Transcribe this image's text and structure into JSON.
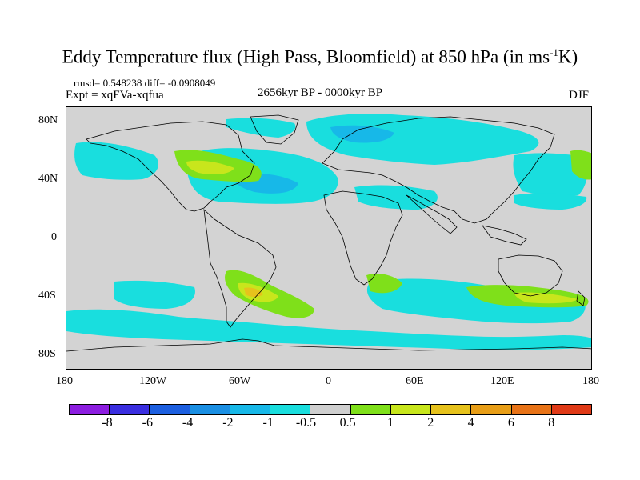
{
  "title": {
    "main": "Eddy Temperature flux (High Pass, Bloomfield) at 850 hPa (in ms",
    "superscript": "-1",
    "tail": "K)"
  },
  "stats_line": "rmsd= 0.548238 diff= -0.0908049",
  "expt_line": "Expt = xqFVa-xqfua",
  "period": "2656kyr BP - 0000kyr BP",
  "season": "DJF",
  "map": {
    "lat_labels": [
      "80N",
      "40N",
      "0",
      "40S",
      "80S"
    ],
    "lon_labels": [
      "180",
      "120W",
      "60W",
      "0",
      "60E",
      "120E",
      "180"
    ],
    "background_color": "#d3d3d3"
  },
  "colorbar": {
    "colors": [
      "#8c1de0",
      "#3a2ee0",
      "#1c5fe0",
      "#1a8fe3",
      "#17b8e8",
      "#19dede",
      "#cfcfcf",
      "#7fe01a",
      "#c8e61c",
      "#e6c21c",
      "#e89e17",
      "#e87317",
      "#e03a17"
    ],
    "labels": [
      "-8",
      "-6",
      "-4",
      "-2",
      "-1",
      "-0.5",
      "0.5",
      "1",
      "2",
      "4",
      "6",
      "8"
    ]
  }
}
